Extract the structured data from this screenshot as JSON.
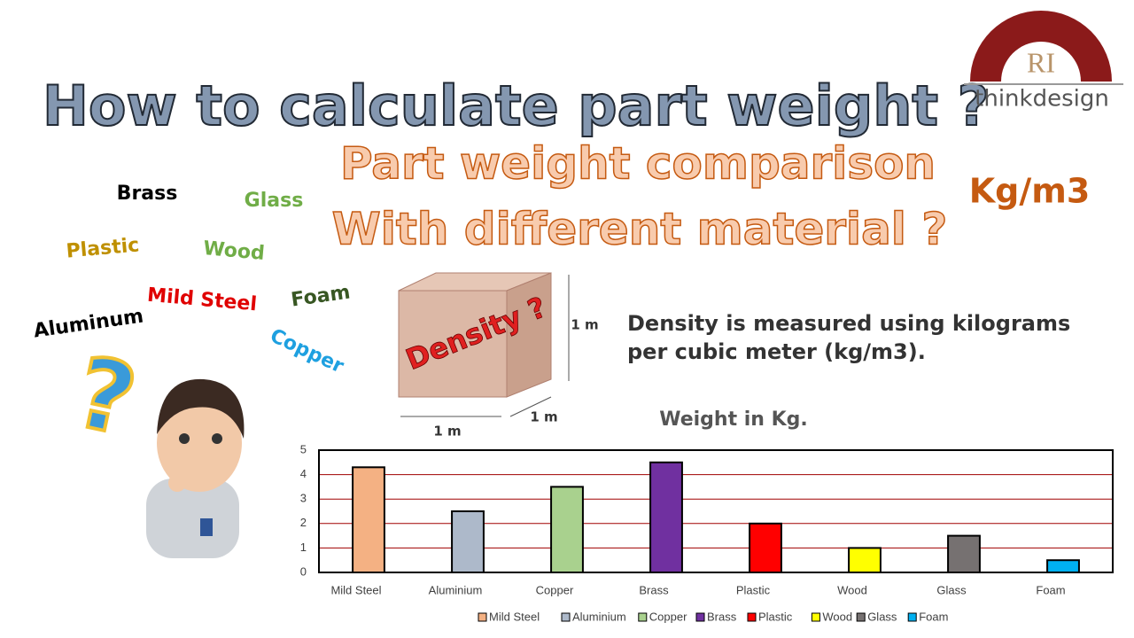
{
  "title": "How to calculate part weight ?",
  "subtitle": [
    "Part weight comparison",
    "With different material ?"
  ],
  "unit_label": "Kg/m3",
  "logo": {
    "initials": "RI",
    "name": "thinkdesign"
  },
  "materials_cloud": [
    "Brass",
    "Glass",
    "Plastic",
    "Wood",
    "Mild Steel",
    "Foam",
    "Aluminum",
    "Copper"
  ],
  "question_mark": "?",
  "cube": {
    "label": "Density ?",
    "height": "1 m",
    "width": "1 m",
    "depth": "1 m"
  },
  "description": [
    "Density is measured using kilograms",
    "per cubic meter (kg/m3)."
  ],
  "chart_data": {
    "type": "bar",
    "title": "Weight in Kg.",
    "categories": [
      "Mild Steel",
      "Aluminium",
      "Copper",
      "Brass",
      "Plastic",
      "Wood",
      "Glass",
      "Foam"
    ],
    "values": [
      4.3,
      2.5,
      3.5,
      4.5,
      2,
      1,
      1.5,
      0.5
    ],
    "colors": [
      "#f4b183",
      "#adb9ca",
      "#a9d18e",
      "#7030a0",
      "#ff0000",
      "#ffff00",
      "#767171",
      "#00b0f0"
    ],
    "ylim": [
      0,
      5
    ],
    "yticks": [
      0,
      1,
      2,
      3,
      4,
      5
    ],
    "grid": true,
    "legend": "bottom"
  }
}
